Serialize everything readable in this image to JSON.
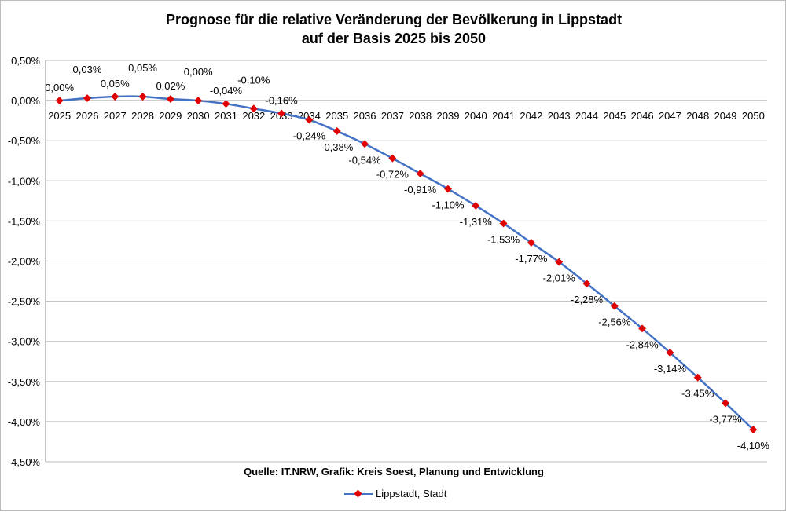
{
  "chart_data": {
    "type": "line",
    "title": "Prognose für die relative Veränderung der Bevölkerung in Lippstadt",
    "subtitle": "auf der Basis 2025 bis 2050",
    "source": "Quelle: IT.NRW, Grafik: Kreis Soest, Planung und Entwicklung",
    "categories": [
      "2025",
      "2026",
      "2027",
      "2028",
      "2029",
      "2030",
      "2031",
      "2032",
      "2033",
      "2034",
      "2035",
      "2036",
      "2037",
      "2038",
      "2039",
      "2040",
      "2041",
      "2042",
      "2043",
      "2044",
      "2045",
      "2046",
      "2047",
      "2048",
      "2049",
      "2050"
    ],
    "series": [
      {
        "name": "Lippstadt, Stadt",
        "values": [
          0,
          0.03,
          0.05,
          0.05,
          0.02,
          0.0,
          -0.04,
          -0.1,
          -0.16,
          -0.24,
          -0.38,
          -0.54,
          -0.72,
          -0.91,
          -1.1,
          -1.31,
          -1.53,
          -1.77,
          -2.01,
          -2.28,
          -2.56,
          -2.84,
          -3.14,
          -3.45,
          -3.77,
          -4.1
        ],
        "color": "#4472C4",
        "marker_color": "#E00000"
      }
    ],
    "ylim": [
      -4.5,
      0.5
    ],
    "yticks": [
      "0,50%",
      "0,00%",
      "-0,50%",
      "-1,00%",
      "-1,50%",
      "-2,00%",
      "-2,50%",
      "-3,00%",
      "-3,50%",
      "-4,00%",
      "-4,50%"
    ],
    "grid": true,
    "legend": "bottom"
  }
}
